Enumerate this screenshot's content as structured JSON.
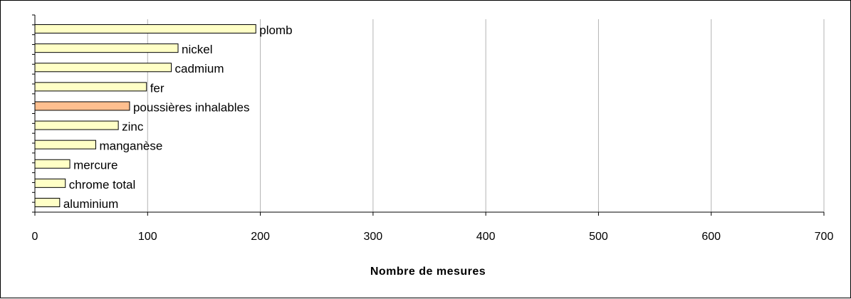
{
  "chart_data": {
    "type": "bar",
    "orientation": "horizontal",
    "xlabel": "Nombre de mesures",
    "xlim": [
      0,
      700
    ],
    "xticks": [
      0,
      100,
      200,
      300,
      400,
      500,
      600,
      700
    ],
    "grid": "vertical",
    "legend": "none",
    "categories": [
      "plomb",
      "nickel",
      "cadmium",
      "fer",
      "poussières inhalables",
      "zinc",
      "manganèse",
      "mercure",
      "chrome total",
      "aluminium"
    ],
    "values": [
      196,
      127,
      121,
      99,
      84,
      74,
      54,
      31,
      27,
      22
    ],
    "colors": {
      "default": "#FFFFC6",
      "highlight": "#FFBF8F",
      "highlight_category": "poussières inhalables",
      "bar_border": "#000000",
      "grid": "#B3B3B3"
    }
  }
}
